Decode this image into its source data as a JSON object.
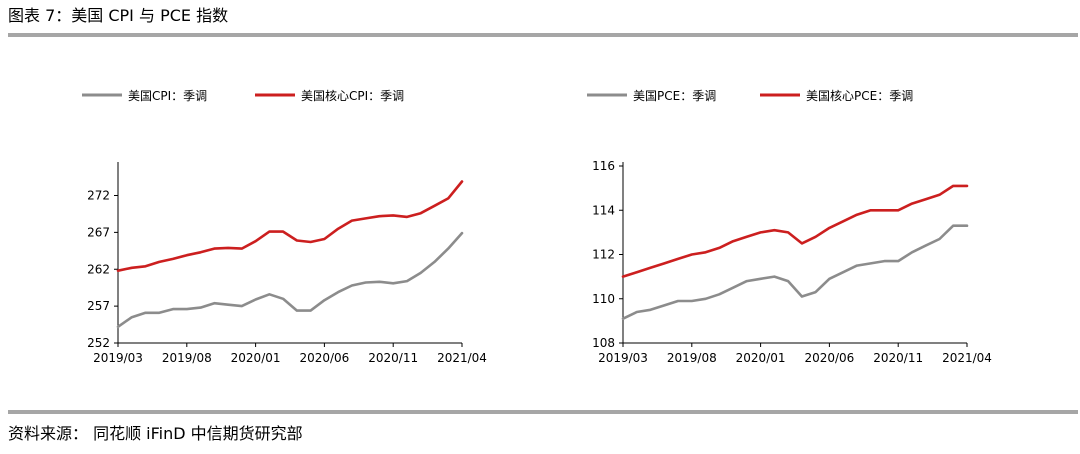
{
  "header": {
    "title": "图表 7：美国 CPI 与 PCE 指数"
  },
  "footer": {
    "source": "资料来源： 同花顺 iFinD 中信期货研究部"
  },
  "colors": {
    "gray": "#8c8c8c",
    "red": "#cc1f1f",
    "rule": "#a6a6a6"
  },
  "chart_data": [
    {
      "type": "line",
      "x_ticks": [
        "2019/03",
        "2019/08",
        "2020/01",
        "2020/06",
        "2020/11",
        "2021/04"
      ],
      "x": [
        "2019/03",
        "2019/04",
        "2019/05",
        "2019/06",
        "2019/07",
        "2019/08",
        "2019/09",
        "2019/10",
        "2019/11",
        "2019/12",
        "2020/01",
        "2020/02",
        "2020/03",
        "2020/04",
        "2020/05",
        "2020/06",
        "2020/07",
        "2020/08",
        "2020/09",
        "2020/10",
        "2020/11",
        "2020/12",
        "2021/01",
        "2021/02",
        "2021/03",
        "2021/04"
      ],
      "ylim": [
        252,
        276
      ],
      "y_ticks": [
        252,
        257,
        262,
        267,
        272
      ],
      "series": [
        {
          "name": "美国CPI：季调",
          "color": "#8c8c8c",
          "values": [
            254.2,
            255.5,
            256.1,
            256.1,
            256.6,
            256.6,
            256.8,
            257.4,
            257.2,
            257.0,
            257.9,
            258.6,
            258.0,
            256.4,
            256.4,
            257.8,
            258.9,
            259.8,
            260.2,
            260.3,
            260.1,
            260.4,
            261.5,
            263.0,
            264.8,
            266.9
          ]
        },
        {
          "name": "美国核心CPI：季调",
          "color": "#cc1f1f",
          "values": [
            261.8,
            262.2,
            262.4,
            263.0,
            263.4,
            263.9,
            264.3,
            264.8,
            264.9,
            264.8,
            265.8,
            267.1,
            267.1,
            265.9,
            265.7,
            266.1,
            267.5,
            268.6,
            268.9,
            269.2,
            269.3,
            269.1,
            269.6,
            270.6,
            271.6,
            273.9
          ]
        }
      ]
    },
    {
      "type": "line",
      "x_ticks": [
        "2019/03",
        "2019/08",
        "2020/01",
        "2020/06",
        "2020/11",
        "2021/04"
      ],
      "x": [
        "2019/03",
        "2019/04",
        "2019/05",
        "2019/06",
        "2019/07",
        "2019/08",
        "2019/09",
        "2019/10",
        "2019/11",
        "2019/12",
        "2020/01",
        "2020/02",
        "2020/03",
        "2020/04",
        "2020/05",
        "2020/06",
        "2020/07",
        "2020/08",
        "2020/09",
        "2020/10",
        "2020/11",
        "2020/12",
        "2021/01",
        "2021/02",
        "2021/03",
        "2021/04"
      ],
      "ylim": [
        108,
        116
      ],
      "y_ticks": [
        108,
        110,
        112,
        114,
        116
      ],
      "series": [
        {
          "name": "美国PCE：季调",
          "color": "#8c8c8c",
          "values": [
            109.1,
            109.4,
            109.5,
            109.7,
            109.9,
            109.9,
            110.0,
            110.2,
            110.5,
            110.8,
            110.9,
            111.0,
            110.8,
            110.1,
            110.3,
            110.9,
            111.2,
            111.5,
            111.6,
            111.7,
            111.7,
            112.1,
            112.4,
            112.7,
            113.3,
            113.3
          ]
        },
        {
          "name": "美国核心PCE：季调",
          "color": "#cc1f1f",
          "values": [
            111.0,
            111.2,
            111.4,
            111.6,
            111.8,
            112.0,
            112.1,
            112.3,
            112.6,
            112.8,
            113.0,
            113.1,
            113.0,
            112.5,
            112.8,
            113.2,
            113.5,
            113.8,
            114.0,
            114.0,
            114.0,
            114.3,
            114.5,
            114.7,
            115.1,
            115.1
          ]
        }
      ]
    }
  ]
}
